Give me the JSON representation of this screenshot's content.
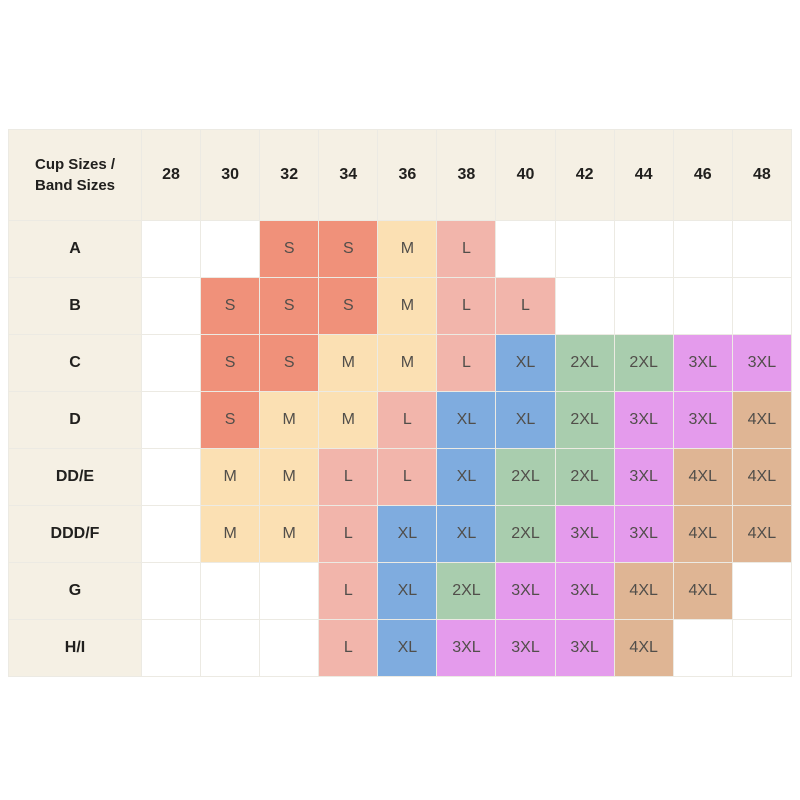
{
  "chart_data": {
    "type": "table",
    "corner_header": "Cup Sizes / Band Sizes",
    "band_sizes": [
      "28",
      "30",
      "32",
      "34",
      "36",
      "38",
      "40",
      "42",
      "44",
      "46",
      "48"
    ],
    "cup_rows": [
      {
        "cup": "A",
        "cells": [
          null,
          null,
          {
            "size": "S",
            "color": "salmon"
          },
          {
            "size": "S",
            "color": "salmon"
          },
          {
            "size": "M",
            "color": "peach"
          },
          {
            "size": "L",
            "color": "pink"
          },
          null,
          null,
          null,
          null,
          null
        ]
      },
      {
        "cup": "B",
        "cells": [
          null,
          {
            "size": "S",
            "color": "salmon"
          },
          {
            "size": "S",
            "color": "salmon"
          },
          {
            "size": "S",
            "color": "salmon"
          },
          {
            "size": "M",
            "color": "peach"
          },
          {
            "size": "L",
            "color": "pink"
          },
          {
            "size": "L",
            "color": "pink"
          },
          null,
          null,
          null,
          null
        ]
      },
      {
        "cup": "C",
        "cells": [
          null,
          {
            "size": "S",
            "color": "salmon"
          },
          {
            "size": "S",
            "color": "salmon"
          },
          {
            "size": "M",
            "color": "peach"
          },
          {
            "size": "M",
            "color": "peach"
          },
          {
            "size": "L",
            "color": "pink"
          },
          {
            "size": "XL",
            "color": "blue"
          },
          {
            "size": "2XL",
            "color": "green"
          },
          {
            "size": "2XL",
            "color": "green"
          },
          {
            "size": "3XL",
            "color": "violet"
          },
          {
            "size": "3XL",
            "color": "violet"
          }
        ]
      },
      {
        "cup": "D",
        "cells": [
          null,
          {
            "size": "S",
            "color": "salmon"
          },
          {
            "size": "M",
            "color": "peach"
          },
          {
            "size": "M",
            "color": "peach"
          },
          {
            "size": "L",
            "color": "pink"
          },
          {
            "size": "XL",
            "color": "blue"
          },
          {
            "size": "XL",
            "color": "blue"
          },
          {
            "size": "2XL",
            "color": "green"
          },
          {
            "size": "3XL",
            "color": "violet"
          },
          {
            "size": "3XL",
            "color": "violet"
          },
          {
            "size": "4XL",
            "color": "tan"
          }
        ]
      },
      {
        "cup": "DD/E",
        "cells": [
          null,
          {
            "size": "M",
            "color": "peach"
          },
          {
            "size": "M",
            "color": "peach"
          },
          {
            "size": "L",
            "color": "pink"
          },
          {
            "size": "L",
            "color": "pink"
          },
          {
            "size": "XL",
            "color": "blue"
          },
          {
            "size": "2XL",
            "color": "green"
          },
          {
            "size": "2XL",
            "color": "green"
          },
          {
            "size": "3XL",
            "color": "violet"
          },
          {
            "size": "4XL",
            "color": "tan"
          },
          {
            "size": "4XL",
            "color": "tan"
          }
        ]
      },
      {
        "cup": "DDD/F",
        "cells": [
          null,
          {
            "size": "M",
            "color": "peach"
          },
          {
            "size": "M",
            "color": "peach"
          },
          {
            "size": "L",
            "color": "pink"
          },
          {
            "size": "XL",
            "color": "blue"
          },
          {
            "size": "XL",
            "color": "blue"
          },
          {
            "size": "2XL",
            "color": "green"
          },
          {
            "size": "3XL",
            "color": "violet"
          },
          {
            "size": "3XL",
            "color": "violet"
          },
          {
            "size": "4XL",
            "color": "tan"
          },
          {
            "size": "4XL",
            "color": "tan"
          }
        ]
      },
      {
        "cup": "G",
        "cells": [
          null,
          null,
          null,
          {
            "size": "L",
            "color": "pink"
          },
          {
            "size": "XL",
            "color": "blue"
          },
          {
            "size": "2XL",
            "color": "green"
          },
          {
            "size": "3XL",
            "color": "violet"
          },
          {
            "size": "3XL",
            "color": "violet"
          },
          {
            "size": "4XL",
            "color": "tan"
          },
          {
            "size": "4XL",
            "color": "tan"
          },
          null
        ]
      },
      {
        "cup": "H/I",
        "cells": [
          null,
          null,
          null,
          {
            "size": "L",
            "color": "pink"
          },
          {
            "size": "XL",
            "color": "blue"
          },
          {
            "size": "3XL",
            "color": "violet"
          },
          {
            "size": "3XL",
            "color": "violet"
          },
          {
            "size": "3XL",
            "color": "violet"
          },
          {
            "size": "4XL",
            "color": "tan"
          },
          null,
          null
        ]
      }
    ]
  },
  "colors": {
    "salmon": "#F0917A",
    "peach": "#FBE0B3",
    "pink": "#F2B5AB",
    "blue": "#7FACDF",
    "green": "#A9CDAE",
    "violet": "#E49BEC",
    "tan": "#DFB594",
    "header_bg": "#F5F0E4",
    "header_text": "#21201E",
    "cell_text": "#514E4A",
    "grid_line": "#ECEAE3",
    "page_bg": "#FFFFFF"
  }
}
